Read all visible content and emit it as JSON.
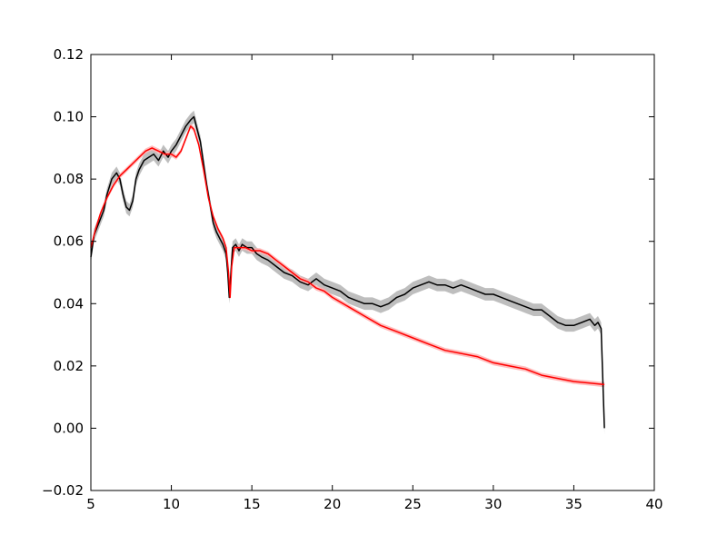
{
  "chart_data": {
    "type": "line",
    "title": "",
    "xlabel": "",
    "ylabel": "",
    "xlim": [
      5,
      40
    ],
    "ylim": [
      -0.02,
      0.12
    ],
    "grid": false,
    "legend": "none",
    "x_ticks": [
      5,
      10,
      15,
      20,
      25,
      30,
      35,
      40
    ],
    "x_tick_labels": [
      "5",
      "10",
      "15",
      "20",
      "25",
      "30",
      "35",
      "40"
    ],
    "y_ticks": [
      -0.02,
      0.0,
      0.02,
      0.04,
      0.06,
      0.08,
      0.1,
      0.12
    ],
    "y_tick_labels": [
      "−0.02",
      "0.00",
      "0.02",
      "0.04",
      "0.06",
      "0.08",
      "0.10",
      "0.12"
    ],
    "series": [
      {
        "color": "#000000",
        "band_color": "#b3b3b3",
        "band_halfwidth": 0.002,
        "points": [
          [
            5.0,
            0.055
          ],
          [
            5.2,
            0.062
          ],
          [
            5.5,
            0.066
          ],
          [
            5.8,
            0.07
          ],
          [
            6.0,
            0.075
          ],
          [
            6.3,
            0.08
          ],
          [
            6.6,
            0.082
          ],
          [
            6.8,
            0.08
          ],
          [
            7.0,
            0.075
          ],
          [
            7.2,
            0.071
          ],
          [
            7.4,
            0.07
          ],
          [
            7.6,
            0.073
          ],
          [
            7.8,
            0.08
          ],
          [
            8.0,
            0.083
          ],
          [
            8.3,
            0.086
          ],
          [
            8.6,
            0.087
          ],
          [
            8.9,
            0.088
          ],
          [
            9.2,
            0.086
          ],
          [
            9.5,
            0.089
          ],
          [
            9.8,
            0.087
          ],
          [
            10.0,
            0.089
          ],
          [
            10.3,
            0.091
          ],
          [
            10.6,
            0.094
          ],
          [
            10.9,
            0.097
          ],
          [
            11.2,
            0.099
          ],
          [
            11.4,
            0.1
          ],
          [
            11.6,
            0.096
          ],
          [
            11.8,
            0.092
          ],
          [
            12.0,
            0.085
          ],
          [
            12.2,
            0.078
          ],
          [
            12.4,
            0.072
          ],
          [
            12.6,
            0.066
          ],
          [
            12.8,
            0.063
          ],
          [
            13.0,
            0.061
          ],
          [
            13.2,
            0.059
          ],
          [
            13.4,
            0.056
          ],
          [
            13.5,
            0.05
          ],
          [
            13.6,
            0.042
          ],
          [
            13.7,
            0.05
          ],
          [
            13.8,
            0.058
          ],
          [
            14.0,
            0.059
          ],
          [
            14.2,
            0.057
          ],
          [
            14.4,
            0.059
          ],
          [
            14.7,
            0.058
          ],
          [
            15.0,
            0.058
          ],
          [
            15.3,
            0.056
          ],
          [
            15.6,
            0.055
          ],
          [
            16.0,
            0.054
          ],
          [
            16.5,
            0.052
          ],
          [
            17.0,
            0.05
          ],
          [
            17.5,
            0.049
          ],
          [
            18.0,
            0.047
          ],
          [
            18.5,
            0.046
          ],
          [
            19.0,
            0.048
          ],
          [
            19.5,
            0.046
          ],
          [
            20.0,
            0.045
          ],
          [
            20.5,
            0.044
          ],
          [
            21.0,
            0.042
          ],
          [
            21.5,
            0.041
          ],
          [
            22.0,
            0.04
          ],
          [
            22.5,
            0.04
          ],
          [
            23.0,
            0.039
          ],
          [
            23.5,
            0.04
          ],
          [
            24.0,
            0.042
          ],
          [
            24.5,
            0.043
          ],
          [
            25.0,
            0.045
          ],
          [
            25.5,
            0.046
          ],
          [
            26.0,
            0.047
          ],
          [
            26.5,
            0.046
          ],
          [
            27.0,
            0.046
          ],
          [
            27.5,
            0.045
          ],
          [
            28.0,
            0.046
          ],
          [
            28.5,
            0.045
          ],
          [
            29.0,
            0.044
          ],
          [
            29.5,
            0.043
          ],
          [
            30.0,
            0.043
          ],
          [
            30.5,
            0.042
          ],
          [
            31.0,
            0.041
          ],
          [
            31.5,
            0.04
          ],
          [
            32.0,
            0.039
          ],
          [
            32.5,
            0.038
          ],
          [
            33.0,
            0.038
          ],
          [
            33.5,
            0.036
          ],
          [
            34.0,
            0.034
          ],
          [
            34.5,
            0.033
          ],
          [
            35.0,
            0.033
          ],
          [
            35.5,
            0.034
          ],
          [
            36.0,
            0.035
          ],
          [
            36.3,
            0.033
          ],
          [
            36.5,
            0.034
          ],
          [
            36.7,
            0.032
          ],
          [
            36.9,
            0.0
          ]
        ]
      },
      {
        "color": "#ff0000",
        "band_color": "#ffb3b3",
        "band_halfwidth": 0.0008,
        "points": [
          [
            5.0,
            0.058
          ],
          [
            5.3,
            0.064
          ],
          [
            5.6,
            0.069
          ],
          [
            6.0,
            0.074
          ],
          [
            6.4,
            0.078
          ],
          [
            6.8,
            0.081
          ],
          [
            7.2,
            0.083
          ],
          [
            7.6,
            0.085
          ],
          [
            8.0,
            0.087
          ],
          [
            8.4,
            0.089
          ],
          [
            8.8,
            0.09
          ],
          [
            9.2,
            0.089
          ],
          [
            9.6,
            0.088
          ],
          [
            10.0,
            0.088
          ],
          [
            10.3,
            0.087
          ],
          [
            10.6,
            0.089
          ],
          [
            10.9,
            0.093
          ],
          [
            11.2,
            0.097
          ],
          [
            11.4,
            0.096
          ],
          [
            11.7,
            0.091
          ],
          [
            12.0,
            0.083
          ],
          [
            12.3,
            0.074
          ],
          [
            12.6,
            0.068
          ],
          [
            12.9,
            0.064
          ],
          [
            13.2,
            0.061
          ],
          [
            13.4,
            0.058
          ],
          [
            13.55,
            0.05
          ],
          [
            13.65,
            0.042
          ],
          [
            13.75,
            0.052
          ],
          [
            13.9,
            0.058
          ],
          [
            14.2,
            0.058
          ],
          [
            14.6,
            0.058
          ],
          [
            15.0,
            0.057
          ],
          [
            15.5,
            0.057
          ],
          [
            16.0,
            0.056
          ],
          [
            16.5,
            0.054
          ],
          [
            17.0,
            0.052
          ],
          [
            17.5,
            0.05
          ],
          [
            18.0,
            0.048
          ],
          [
            18.5,
            0.047
          ],
          [
            19.0,
            0.045
          ],
          [
            19.5,
            0.044
          ],
          [
            20.0,
            0.042
          ],
          [
            21.0,
            0.039
          ],
          [
            22.0,
            0.036
          ],
          [
            23.0,
            0.033
          ],
          [
            24.0,
            0.031
          ],
          [
            25.0,
            0.029
          ],
          [
            26.0,
            0.027
          ],
          [
            27.0,
            0.025
          ],
          [
            28.0,
            0.024
          ],
          [
            29.0,
            0.023
          ],
          [
            30.0,
            0.021
          ],
          [
            31.0,
            0.02
          ],
          [
            32.0,
            0.019
          ],
          [
            33.0,
            0.017
          ],
          [
            34.0,
            0.016
          ],
          [
            35.0,
            0.015
          ],
          [
            36.0,
            0.0145
          ],
          [
            36.9,
            0.014
          ]
        ]
      }
    ]
  }
}
